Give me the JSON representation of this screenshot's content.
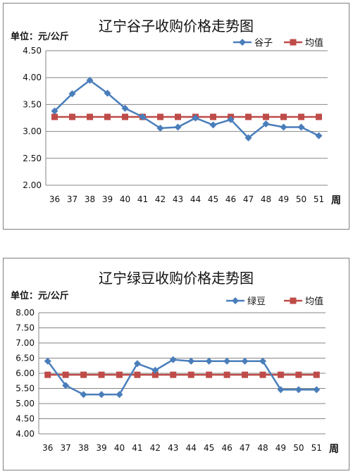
{
  "chart_data": [
    {
      "type": "line",
      "title": "辽宁谷子收购价格走势图",
      "ylabel": "单位：元/公斤",
      "xlabel": "周",
      "categories": [
        "36",
        "37",
        "38",
        "39",
        "40",
        "41",
        "42",
        "43",
        "44",
        "45",
        "46",
        "47",
        "48",
        "49",
        "50",
        "51"
      ],
      "ylim": [
        2.0,
        4.5
      ],
      "yticks": [
        "2.00",
        "2.50",
        "3.00",
        "3.50",
        "4.00",
        "4.50"
      ],
      "grid": true,
      "legend": "top-right",
      "series": [
        {
          "name": "谷子",
          "color": "#4a7ebb",
          "marker": "diamond",
          "values": [
            3.38,
            3.7,
            3.95,
            3.71,
            3.43,
            3.27,
            3.06,
            3.08,
            3.25,
            3.12,
            3.22,
            2.88,
            3.14,
            3.08,
            3.08,
            2.92
          ]
        },
        {
          "name": "均值",
          "color": "#be4b48",
          "marker": "square",
          "values": [
            3.27,
            3.27,
            3.27,
            3.27,
            3.27,
            3.27,
            3.27,
            3.27,
            3.27,
            3.27,
            3.27,
            3.27,
            3.27,
            3.27,
            3.27,
            3.27
          ]
        }
      ]
    },
    {
      "type": "line",
      "title": "辽宁绿豆收购价格走势图",
      "ylabel": "单位：元/公斤",
      "xlabel": "周",
      "categories": [
        "36",
        "37",
        "38",
        "39",
        "40",
        "41",
        "42",
        "43",
        "44",
        "45",
        "46",
        "47",
        "48",
        "49",
        "50",
        "51"
      ],
      "ylim": [
        4.0,
        8.0
      ],
      "yticks": [
        "4.00",
        "4.50",
        "5.00",
        "5.50",
        "6.00",
        "6.50",
        "7.00",
        "7.50",
        "8.00"
      ],
      "grid": true,
      "legend": "top-right",
      "series": [
        {
          "name": "绿豆",
          "color": "#4a7ebb",
          "marker": "diamond",
          "values": [
            6.4,
            5.6,
            5.3,
            5.3,
            5.3,
            6.32,
            6.1,
            6.45,
            6.4,
            6.4,
            6.4,
            6.4,
            6.4,
            5.46,
            5.46,
            5.46
          ]
        },
        {
          "name": "均值",
          "color": "#be4b48",
          "marker": "square",
          "values": [
            5.95,
            5.95,
            5.95,
            5.95,
            5.95,
            5.95,
            5.95,
            5.95,
            5.95,
            5.95,
            5.95,
            5.95,
            5.95,
            5.95,
            5.95,
            5.95
          ]
        }
      ]
    }
  ]
}
